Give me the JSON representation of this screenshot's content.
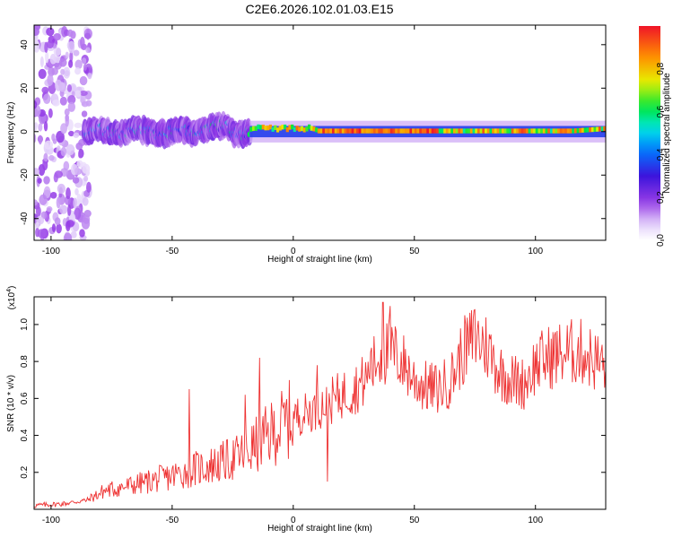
{
  "title": "C2E6.2026.102.01.03.E15",
  "colors": {
    "line": "#ee3333",
    "axis": "#000000",
    "background": "#ffffff"
  },
  "chart_data": [
    {
      "type": "heatmap",
      "name": "spectrogram",
      "xlabel": "Height of straight line (km)",
      "ylabel": "Frequency (Hz)",
      "xlim": [
        -107,
        129
      ],
      "ylim": [
        -50,
        49
      ],
      "xticks": [
        -100,
        -50,
        0,
        50,
        100
      ],
      "yticks": [
        -40,
        -20,
        0,
        20,
        40
      ],
      "xtick_labels": [
        "-100",
        "-50",
        "0",
        "50",
        "100"
      ],
      "ytick_labels": [
        "-40",
        "-20",
        "0",
        "20",
        "40"
      ],
      "colorbar": {
        "label": "Normalized spectral amplitude",
        "range": [
          0.0,
          1.0
        ],
        "ticks": [
          0.0,
          0.2,
          0.4,
          0.6,
          0.8
        ],
        "tick_labels": [
          "0.0",
          "0.2",
          "0.4",
          "0.6",
          "0.8"
        ]
      },
      "features": [
        {
          "region": "noise",
          "x_range": [
            -107,
            -86
          ],
          "freq_range": [
            -50,
            49
          ],
          "amplitude": 0.15
        },
        {
          "region": "broadband",
          "x_range": [
            -86,
            -18
          ],
          "freq_center": 0,
          "freq_spread": 8,
          "amplitude": 0.35
        },
        {
          "region": "narrowband",
          "x_range": [
            -18,
            129
          ],
          "freq_center": 0,
          "freq_spread": 2,
          "amplitude": 0.95
        }
      ]
    },
    {
      "type": "line",
      "name": "snr",
      "xlabel": "Height of straight line (km)",
      "ylabel": "SNR (10 * v/v)",
      "multiplier_label": "(x10",
      "multiplier_exp": "4",
      "multiplier_close": ")",
      "xlim": [
        -107,
        129
      ],
      "ylim": [
        0,
        1.15
      ],
      "xticks": [
        -100,
        -50,
        0,
        50,
        100
      ],
      "yticks": [
        0.2,
        0.4,
        0.6,
        0.8,
        1.0
      ],
      "xtick_labels": [
        "-100",
        "-50",
        "0",
        "50",
        "100"
      ],
      "ytick_labels": [
        "0.2",
        "0.4",
        "0.6",
        "0.8",
        "1.0"
      ],
      "envelope": [
        [
          -107,
          0.02
        ],
        [
          -95,
          0.03
        ],
        [
          -85,
          0.05
        ],
        [
          -78,
          0.1
        ],
        [
          -70,
          0.12
        ],
        [
          -60,
          0.15
        ],
        [
          -50,
          0.18
        ],
        [
          -40,
          0.22
        ],
        [
          -30,
          0.25
        ],
        [
          -20,
          0.3
        ],
        [
          -15,
          0.35
        ],
        [
          -10,
          0.4
        ],
        [
          -5,
          0.45
        ],
        [
          0,
          0.5
        ],
        [
          5,
          0.52
        ],
        [
          10,
          0.55
        ],
        [
          15,
          0.58
        ],
        [
          20,
          0.62
        ],
        [
          25,
          0.65
        ],
        [
          30,
          0.7
        ],
        [
          35,
          0.82
        ],
        [
          40,
          0.86
        ],
        [
          45,
          0.8
        ],
        [
          50,
          0.7
        ],
        [
          55,
          0.66
        ],
        [
          60,
          0.65
        ],
        [
          65,
          0.7
        ],
        [
          70,
          0.85
        ],
        [
          75,
          0.93
        ],
        [
          80,
          0.88
        ],
        [
          85,
          0.75
        ],
        [
          90,
          0.7
        ],
        [
          95,
          0.68
        ],
        [
          100,
          0.78
        ],
        [
          105,
          0.82
        ],
        [
          110,
          0.84
        ],
        [
          115,
          0.85
        ],
        [
          120,
          0.85
        ],
        [
          125,
          0.8
        ],
        [
          129,
          0.78
        ]
      ],
      "spikes": [
        [
          -43,
          0.65
        ],
        [
          -20,
          0.62
        ],
        [
          -14,
          0.82
        ],
        [
          10,
          0.78
        ],
        [
          14,
          0.15
        ],
        [
          32,
          0.85
        ],
        [
          37,
          1.12
        ],
        [
          40,
          1.1
        ],
        [
          75,
          1.08
        ]
      ]
    }
  ]
}
